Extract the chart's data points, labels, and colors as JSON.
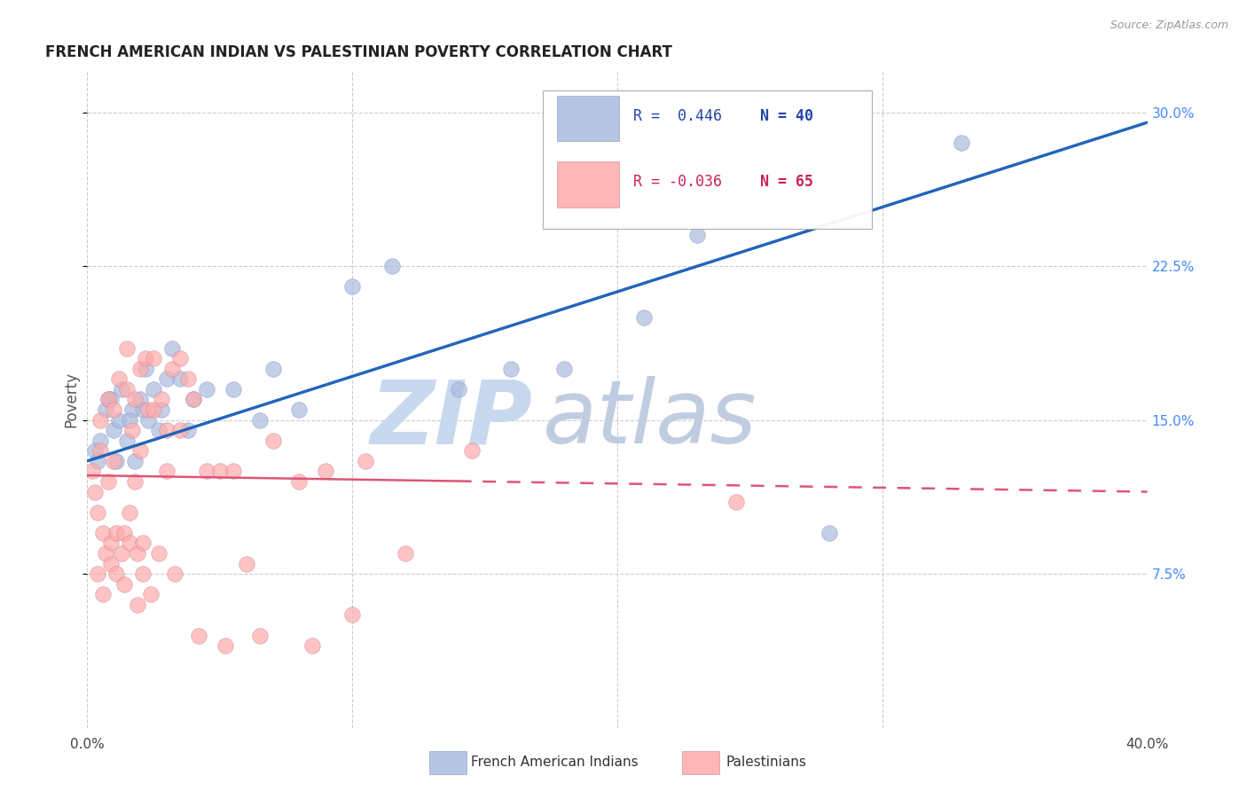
{
  "title": "FRENCH AMERICAN INDIAN VS PALESTINIAN POVERTY CORRELATION CHART",
  "source": "Source: ZipAtlas.com",
  "ylabel": "Poverty",
  "ylabel_right_ticks": [
    "7.5%",
    "15.0%",
    "22.5%",
    "30.0%"
  ],
  "ylabel_right_vals": [
    7.5,
    15.0,
    22.5,
    30.0
  ],
  "xlim": [
    0.0,
    40.0
  ],
  "ylim": [
    0.0,
    32.0
  ],
  "legend_label_blue": "French American Indians",
  "legend_label_pink": "Palestinians",
  "legend_r_blue": "R =  0.446",
  "legend_n_blue": "N = 40",
  "legend_r_pink": "R = -0.036",
  "legend_n_pink": "N = 65",
  "blue_color": "#aabbdd",
  "pink_color": "#ffaaaa",
  "trendline_blue_color": "#2266bb",
  "trendline_pink_color": "#dd5577",
  "background_color": "#ffffff",
  "watermark_zip": "ZIP",
  "watermark_atlas": "atlas",
  "watermark_color_zip": "#c8d8ee",
  "watermark_color_atlas": "#c0cce0",
  "blue_x": [
    0.3,
    0.5,
    0.7,
    0.8,
    1.0,
    1.2,
    1.3,
    1.5,
    1.7,
    1.8,
    2.0,
    2.2,
    2.3,
    2.5,
    2.8,
    3.0,
    3.2,
    3.5,
    4.0,
    4.5,
    5.5,
    7.0,
    8.0,
    10.0,
    11.5,
    14.0,
    16.0,
    18.0,
    21.0,
    23.0,
    0.4,
    0.9,
    1.1,
    1.6,
    2.1,
    2.7,
    3.8,
    6.5,
    28.0,
    33.0
  ],
  "blue_y": [
    13.5,
    14.0,
    15.5,
    16.0,
    14.5,
    15.0,
    16.5,
    14.0,
    15.5,
    13.0,
    16.0,
    17.5,
    15.0,
    16.5,
    15.5,
    17.0,
    18.5,
    17.0,
    16.0,
    16.5,
    16.5,
    17.5,
    15.5,
    21.5,
    22.5,
    16.5,
    17.5,
    17.5,
    20.0,
    24.0,
    13.0,
    16.0,
    13.0,
    15.0,
    15.5,
    14.5,
    14.5,
    15.0,
    9.5,
    28.5
  ],
  "pink_x": [
    0.2,
    0.3,
    0.4,
    0.5,
    0.5,
    0.6,
    0.7,
    0.8,
    0.8,
    0.9,
    1.0,
    1.0,
    1.1,
    1.2,
    1.3,
    1.4,
    1.5,
    1.5,
    1.6,
    1.7,
    1.8,
    1.8,
    1.9,
    2.0,
    2.0,
    2.1,
    2.2,
    2.3,
    2.5,
    2.5,
    2.7,
    2.8,
    3.0,
    3.0,
    3.2,
    3.5,
    3.5,
    3.8,
    4.0,
    4.5,
    5.0,
    5.5,
    6.0,
    7.0,
    8.0,
    9.0,
    10.5,
    12.0,
    14.5,
    24.5,
    0.4,
    0.6,
    0.9,
    1.1,
    1.4,
    1.6,
    1.9,
    2.1,
    2.4,
    3.3,
    4.2,
    5.2,
    6.5,
    8.5,
    10.0
  ],
  "pink_y": [
    12.5,
    11.5,
    10.5,
    13.5,
    15.0,
    9.5,
    8.5,
    16.0,
    12.0,
    9.0,
    13.0,
    15.5,
    9.5,
    17.0,
    8.5,
    9.5,
    16.5,
    18.5,
    9.0,
    14.5,
    12.0,
    16.0,
    8.5,
    13.5,
    17.5,
    9.0,
    18.0,
    15.5,
    15.5,
    18.0,
    8.5,
    16.0,
    12.5,
    14.5,
    17.5,
    18.0,
    14.5,
    17.0,
    16.0,
    12.5,
    12.5,
    12.5,
    8.0,
    14.0,
    12.0,
    12.5,
    13.0,
    8.5,
    13.5,
    11.0,
    7.5,
    6.5,
    8.0,
    7.5,
    7.0,
    10.5,
    6.0,
    7.5,
    6.5,
    7.5,
    4.5,
    4.0,
    4.5,
    4.0,
    5.5
  ],
  "trendline_blue_x0": 0.0,
  "trendline_blue_y0": 13.0,
  "trendline_blue_x1": 40.0,
  "trendline_blue_y1": 29.5,
  "trendline_pink_x0": 0.0,
  "trendline_pink_y0": 12.3,
  "trendline_pink_x1": 40.0,
  "trendline_pink_y1": 11.5,
  "trendline_pink_solid_end": 14.0
}
